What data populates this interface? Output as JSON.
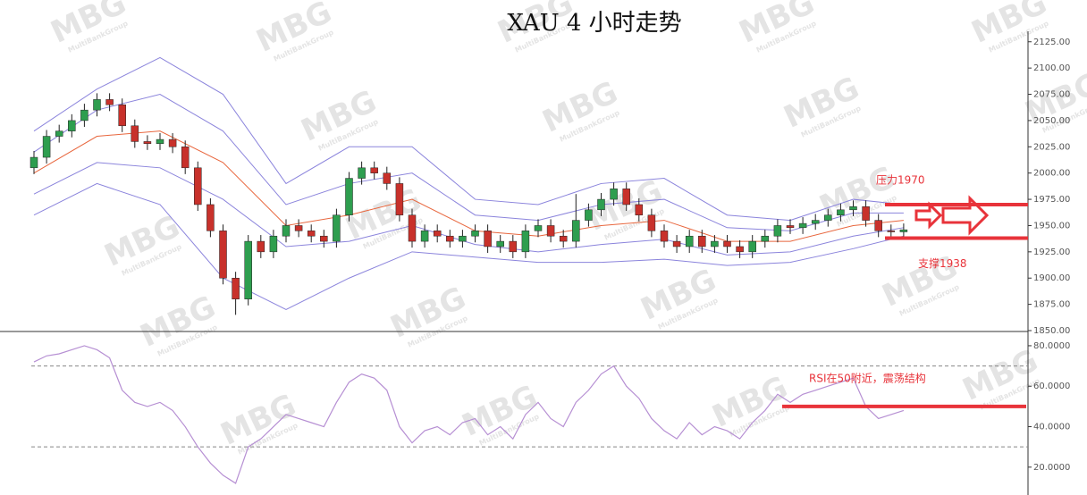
{
  "watermark": {
    "logo": "MBG",
    "sub": "MultiBankGroup"
  },
  "chart_data": [
    {
      "type": "candlestick",
      "title": "XAU 4 小时走势",
      "up_color": "#2e9e4f",
      "down_color": "#c8312b",
      "open": [
        2005,
        2015,
        2035,
        2040,
        2050,
        2060,
        2070,
        2065,
        2045,
        2030,
        2028,
        2032,
        2025,
        2005,
        1970,
        1945,
        1900,
        1880,
        1935,
        1925,
        1940,
        1950,
        1945,
        1940,
        1935,
        1960,
        1995,
        2005,
        2000,
        1990,
        1960,
        1935,
        1945,
        1940,
        1935,
        1940,
        1945,
        1930,
        1935,
        1925,
        1945,
        1950,
        1940,
        1935,
        1955,
        1965,
        1975,
        1985,
        1970,
        1960,
        1945,
        1935,
        1930,
        1940,
        1930,
        1935,
        1930,
        1925,
        1935,
        1940,
        1950,
        1948,
        1952,
        1955,
        1960,
        1965,
        1968,
        1955,
        1945,
        1944
      ],
      "high": [
        2021,
        2041,
        2046,
        2056,
        2066,
        2076,
        2076,
        2071,
        2051,
        2036,
        2038,
        2038,
        2031,
        2011,
        1976,
        1951,
        1906,
        1941,
        1941,
        1946,
        1956,
        1956,
        1951,
        1946,
        1966,
        2001,
        2011,
        2011,
        2006,
        1996,
        1966,
        1951,
        1951,
        1946,
        1946,
        1951,
        1951,
        1941,
        1941,
        1951,
        1956,
        1956,
        1946,
        1980,
        1971,
        1981,
        1991,
        1991,
        1976,
        1966,
        1951,
        1941,
        1946,
        1946,
        1941,
        1941,
        1936,
        1941,
        1946,
        1956,
        1956,
        1958,
        1961,
        1966,
        1971,
        1974,
        1974,
        1961,
        1951,
        1952
      ],
      "low": [
        1999,
        2009,
        2029,
        2034,
        2044,
        2054,
        2059,
        2039,
        2024,
        2022,
        2022,
        2019,
        1999,
        1964,
        1939,
        1894,
        1865,
        1874,
        1919,
        1919,
        1934,
        1939,
        1934,
        1929,
        1929,
        1954,
        1989,
        1994,
        1984,
        1954,
        1929,
        1929,
        1934,
        1929,
        1929,
        1934,
        1924,
        1924,
        1919,
        1919,
        1939,
        1934,
        1929,
        1929,
        1949,
        1959,
        1969,
        1964,
        1954,
        1939,
        1929,
        1924,
        1924,
        1924,
        1924,
        1924,
        1919,
        1919,
        1929,
        1934,
        1942,
        1942,
        1946,
        1949,
        1954,
        1959,
        1949,
        1939,
        1938,
        1938
      ],
      "close": [
        2015,
        2035,
        2040,
        2050,
        2060,
        2070,
        2065,
        2045,
        2030,
        2028,
        2032,
        2025,
        2005,
        1970,
        1945,
        1900,
        1880,
        1935,
        1925,
        1940,
        1950,
        1945,
        1940,
        1935,
        1960,
        1995,
        2005,
        2000,
        1990,
        1960,
        1935,
        1945,
        1940,
        1935,
        1940,
        1945,
        1930,
        1935,
        1925,
        1945,
        1950,
        1940,
        1935,
        1955,
        1965,
        1975,
        1985,
        1970,
        1960,
        1945,
        1935,
        1930,
        1940,
        1930,
        1935,
        1930,
        1925,
        1935,
        1940,
        1950,
        1948,
        1952,
        1955,
        1960,
        1965,
        1968,
        1955,
        1945,
        1944,
        1946
      ],
      "bands": {
        "x": [
          0,
          5,
          10,
          15,
          20,
          25,
          30,
          35,
          40,
          45,
          50,
          55,
          60,
          65,
          69
        ],
        "series": [
          {
            "color": "#8b84dc",
            "values": [
              2040,
              2080,
              2110,
              2075,
              1990,
              2025,
              2025,
              1975,
              1970,
              1990,
              1995,
              1960,
              1955,
              1975,
              1970
            ]
          },
          {
            "color": "#8b84dc",
            "values": [
              2020,
              2060,
              2075,
              2040,
              1970,
              1990,
              2000,
              1960,
              1955,
              1970,
              1975,
              1948,
              1945,
              1962,
              1962
            ]
          },
          {
            "color": "#e8663d",
            "values": [
              2000,
              2035,
              2040,
              2010,
              1950,
              1960,
              1975,
              1945,
              1940,
              1950,
              1955,
              1935,
              1935,
              1950,
              1955
            ]
          },
          {
            "color": "#8b84dc",
            "values": [
              1980,
              2010,
              2005,
              1975,
              1930,
              1935,
              1950,
              1932,
              1925,
              1932,
              1937,
              1922,
              1925,
              1940,
              1948
            ]
          },
          {
            "color": "#8b84dc",
            "values": [
              1960,
              1990,
              1970,
              1900,
              1870,
              1900,
              1925,
              1920,
              1915,
              1915,
              1918,
              1912,
              1915,
              1928,
              1940
            ]
          }
        ]
      },
      "ylim": [
        1850,
        2135
      ],
      "yticks": [
        {
          "value": 1850,
          "label": "1850.00"
        },
        {
          "value": 1875,
          "label": "1875.00"
        },
        {
          "value": 1900,
          "label": "1900.00"
        },
        {
          "value": 1925,
          "label": "1925.00"
        },
        {
          "value": 1950,
          "label": "1950.00"
        },
        {
          "value": 1975,
          "label": "1975.00"
        },
        {
          "value": 2000,
          "label": "2000.00"
        },
        {
          "value": 2025,
          "label": "2025.00"
        },
        {
          "value": 2050,
          "label": "2050.00"
        },
        {
          "value": 2075,
          "label": "2075.00"
        },
        {
          "value": 2100,
          "label": "2100.00"
        },
        {
          "value": 2125,
          "label": "2125.00"
        }
      ],
      "annotations": [
        {
          "text": "压力1970",
          "value": 1970,
          "color": "#e8333a"
        },
        {
          "text": "支撑1938",
          "value": 1938,
          "color": "#e8333a"
        }
      ]
    },
    {
      "type": "line",
      "series": [
        {
          "color": "#b68fd3",
          "values": [
            72,
            75,
            76,
            78,
            80,
            78,
            74,
            58,
            52,
            50,
            52,
            48,
            40,
            30,
            22,
            16,
            12,
            30,
            34,
            40,
            46,
            44,
            42,
            40,
            52,
            62,
            66,
            64,
            58,
            40,
            32,
            38,
            40,
            36,
            42,
            44,
            36,
            40,
            34,
            46,
            52,
            44,
            40,
            52,
            58,
            66,
            70,
            60,
            54,
            44,
            38,
            34,
            42,
            36,
            40,
            38,
            34,
            42,
            48,
            56,
            52,
            56,
            58,
            60,
            62,
            64,
            50,
            44,
            46,
            48
          ]
        }
      ],
      "ylim": [
        8,
        86.6
      ],
      "yticks": [
        {
          "value": 20,
          "label": "20.0000"
        },
        {
          "value": 40,
          "label": "40.0000"
        },
        {
          "value": 60,
          "label": "60.0000"
        },
        {
          "value": 80,
          "label": "80.0000"
        }
      ],
      "reference_lines": [
        70,
        30
      ],
      "annotation": {
        "text": "RSI在50附近，震荡结构",
        "value": 50,
        "color": "#e8333a"
      }
    }
  ]
}
